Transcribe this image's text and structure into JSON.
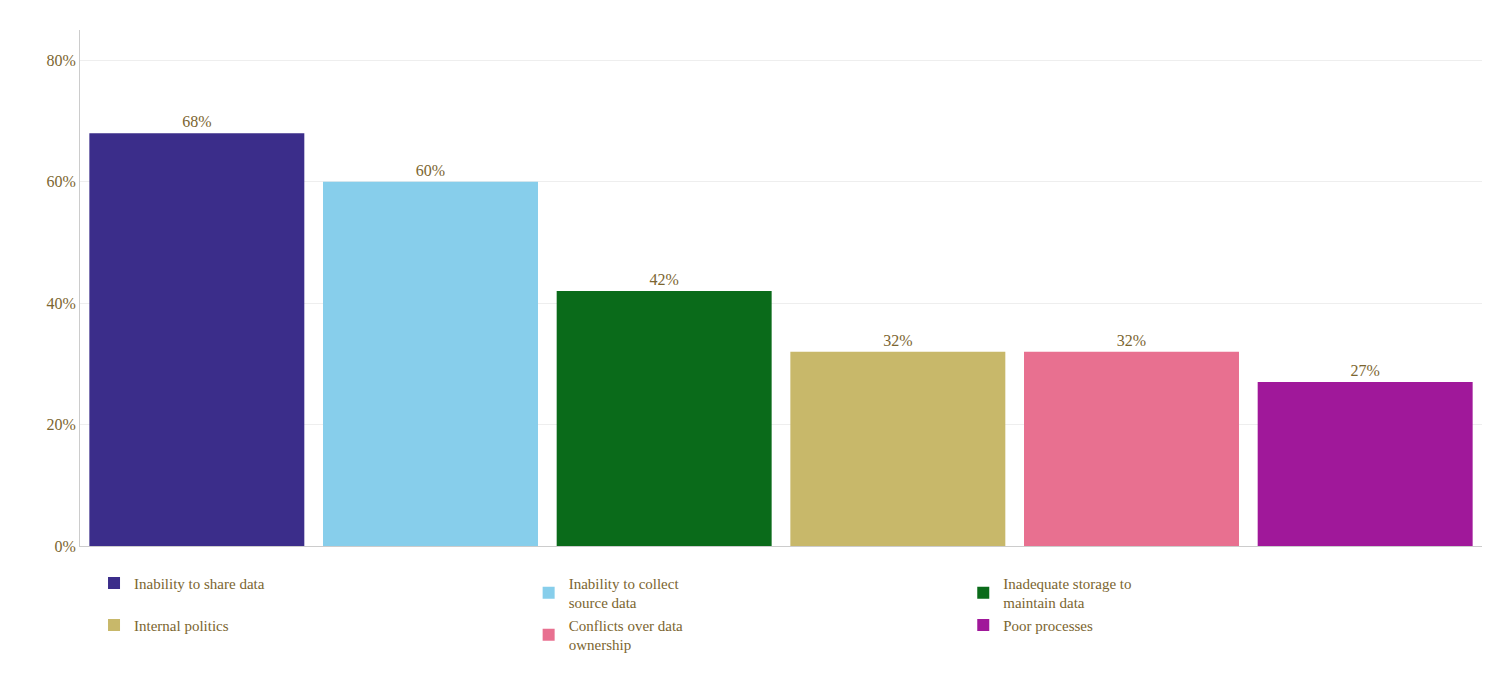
{
  "chart_data": {
    "type": "bar",
    "categories": [
      "Inability to share data",
      "Inability to collect\nsource data",
      "Inadequate storage to\nmaintain data",
      "Internal politics",
      "Conflicts over data\nownership",
      "Poor processes"
    ],
    "values": [
      68,
      60,
      42,
      32,
      32,
      27
    ],
    "value_labels": [
      "68%",
      "60%",
      "42%",
      "32%",
      "32%",
      "27%"
    ],
    "colors": [
      "#3B2D8A",
      "#87CEEB",
      "#0A6B1A",
      "#C8B86A",
      "#E87090",
      "#A0189A"
    ],
    "ylim": [
      0,
      85
    ],
    "yticks": [
      {
        "value": 0,
        "label": "0%"
      },
      {
        "value": 20,
        "label": "20%"
      },
      {
        "value": 40,
        "label": "40%"
      },
      {
        "value": 60,
        "label": "60%"
      },
      {
        "value": 80,
        "label": "80%"
      }
    ],
    "grid": true,
    "data_labels": true,
    "tick_labels": "y",
    "legend": "bottom"
  }
}
